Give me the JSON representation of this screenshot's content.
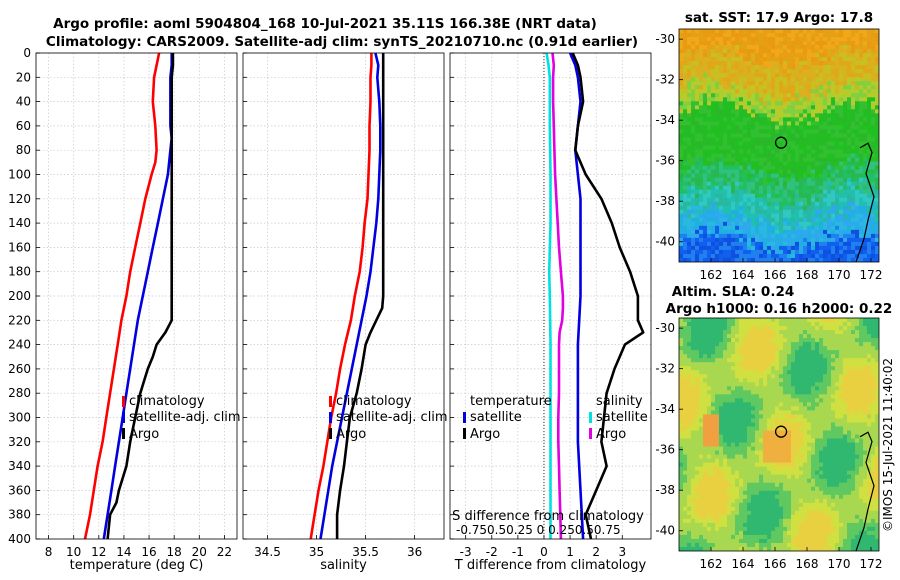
{
  "title_line1": "Argo profile: aoml 5904804_168 10-Jul-2021 35.11S 166.38E (NRT data)",
  "title_line2": "Climatology: CARS2009. Satellite-adj clim: synTS_20210710.nc (0.91d earlier)",
  "colors": {
    "red": "#ff0000",
    "blue": "#0000e0",
    "black": "#000000",
    "cyan": "#00e0e0",
    "magenta": "#e000e0"
  },
  "legend": {
    "climatology": "climatology",
    "satellite_adj": "satellite-adj. clim",
    "argo": "Argo",
    "temperature": "temperature",
    "salinity": "salinity",
    "satellite": "satellite"
  },
  "sst_title": "sat. SST: 17.9 Argo: 17.8",
  "sla_title1": "Altim. SLA: 0.24",
  "sla_title2": "Argo h1000: 0.16 h2000: 0.22",
  "copyright": "©IMOS 15-Jul-2021 11:40:02",
  "chart_data": [
    {
      "type": "line",
      "xlabel": "temperature (deg C)",
      "xlim": [
        7,
        23
      ],
      "ylim": [
        0,
        400
      ],
      "yreverse": true,
      "yticks": [
        "0",
        "20",
        "40",
        "60",
        "80",
        "100",
        "120",
        "140",
        "160",
        "180",
        "200",
        "220",
        "240",
        "260",
        "280",
        "300",
        "320",
        "340",
        "360",
        "380",
        "400"
      ],
      "xticks": [
        8,
        10,
        12,
        14,
        16,
        18,
        20,
        22
      ],
      "series": [
        {
          "name": "climatology",
          "color": "red",
          "depth": [
            0,
            10,
            20,
            40,
            60,
            80,
            90,
            100,
            120,
            140,
            160,
            180,
            200,
            220,
            240,
            260,
            280,
            300,
            320,
            340,
            360,
            380,
            400
          ],
          "values": [
            16.8,
            16.6,
            16.4,
            16.3,
            16.5,
            16.6,
            16.5,
            16.2,
            15.7,
            15.3,
            14.9,
            14.5,
            14.2,
            13.8,
            13.5,
            13.2,
            12.9,
            12.6,
            12.3,
            11.9,
            11.6,
            11.3,
            10.9
          ]
        },
        {
          "name": "satellite-adj. clim",
          "color": "blue",
          "depth": [
            0,
            10,
            20,
            40,
            60,
            70,
            80,
            100,
            120,
            140,
            160,
            180,
            200,
            220,
            240,
            260,
            280,
            300,
            320,
            340,
            360,
            380,
            400
          ],
          "values": [
            17.8,
            17.8,
            17.7,
            17.7,
            17.7,
            17.8,
            17.7,
            17.5,
            17.1,
            16.7,
            16.3,
            15.9,
            15.5,
            15.1,
            14.8,
            14.5,
            14.2,
            13.9,
            13.6,
            13.3,
            13.0,
            12.7,
            12.4
          ]
        },
        {
          "name": "Argo",
          "color": "black",
          "depth": [
            0,
            10,
            20,
            40,
            60,
            80,
            100,
            140,
            180,
            200,
            220,
            230,
            240,
            250,
            260,
            270,
            280,
            300,
            320,
            340,
            360,
            370,
            380,
            400
          ],
          "values": [
            17.9,
            17.9,
            17.8,
            17.8,
            17.8,
            17.8,
            17.8,
            17.8,
            17.8,
            17.8,
            17.8,
            17.3,
            16.6,
            16.3,
            15.9,
            15.6,
            15.3,
            14.9,
            14.5,
            14.2,
            13.6,
            13.4,
            12.9,
            12.7
          ]
        }
      ]
    },
    {
      "type": "line",
      "xlabel": "salinity",
      "xlim": [
        34.25,
        36.3
      ],
      "ylim": [
        0,
        400
      ],
      "yreverse": true,
      "xticks": [
        34.5,
        35,
        35.5,
        36
      ],
      "series": [
        {
          "name": "climatology",
          "color": "red",
          "depth": [
            0,
            10,
            20,
            40,
            60,
            80,
            100,
            120,
            140,
            160,
            180,
            200,
            220,
            240,
            260,
            280,
            300,
            320,
            340,
            360,
            380,
            400
          ],
          "values": [
            35.56,
            35.56,
            35.55,
            35.55,
            35.54,
            35.54,
            35.53,
            35.52,
            35.49,
            35.47,
            35.44,
            35.39,
            35.35,
            35.29,
            35.24,
            35.2,
            35.15,
            35.11,
            35.07,
            35.02,
            34.98,
            34.94
          ]
        },
        {
          "name": "satellite-adj. clim",
          "color": "blue",
          "depth": [
            0,
            10,
            20,
            40,
            60,
            80,
            100,
            120,
            140,
            160,
            180,
            200,
            220,
            240,
            260,
            280,
            300,
            320,
            340,
            360,
            380,
            400
          ],
          "values": [
            35.6,
            35.63,
            35.62,
            35.64,
            35.65,
            35.65,
            35.64,
            35.63,
            35.61,
            35.58,
            35.55,
            35.51,
            35.46,
            35.41,
            35.36,
            35.31,
            35.26,
            35.21,
            35.16,
            35.12,
            35.08,
            35.04
          ]
        },
        {
          "name": "Argo",
          "color": "black",
          "depth": [
            0,
            10,
            20,
            40,
            60,
            80,
            100,
            140,
            180,
            200,
            210,
            220,
            230,
            240,
            260,
            280,
            300,
            320,
            340,
            360,
            380,
            400
          ],
          "values": [
            35.68,
            35.68,
            35.68,
            35.68,
            35.68,
            35.68,
            35.68,
            35.68,
            35.68,
            35.68,
            35.67,
            35.61,
            35.55,
            35.5,
            35.46,
            35.41,
            35.34,
            35.31,
            35.28,
            35.24,
            35.21,
            35.21
          ]
        }
      ]
    },
    {
      "type": "line",
      "xlabel": "T difference from climatology",
      "s_label": "S difference from climatology",
      "xlim": [
        -3.6,
        4.1
      ],
      "ylim": [
        0,
        400
      ],
      "yreverse": true,
      "xticks": [
        -3,
        -2,
        -1,
        0,
        1,
        2,
        3
      ],
      "s_ticks_text": "-0.750.50.25  0  0.250.50.75",
      "series": [
        {
          "name": "satellite (T)",
          "color": "blue",
          "depth": [
            0,
            10,
            20,
            40,
            60,
            80,
            100,
            120,
            140,
            160,
            180,
            200,
            240,
            280,
            320,
            360,
            400
          ],
          "values": [
            1.0,
            1.2,
            1.3,
            1.4,
            1.3,
            1.2,
            1.3,
            1.4,
            1.4,
            1.4,
            1.4,
            1.4,
            1.3,
            1.3,
            1.3,
            1.4,
            1.5
          ]
        },
        {
          "name": "Argo (T)",
          "color": "black",
          "depth": [
            0,
            10,
            20,
            40,
            60,
            80,
            100,
            120,
            140,
            160,
            180,
            200,
            210,
            220,
            230,
            240,
            260,
            280,
            300,
            320,
            340,
            360,
            380,
            400
          ],
          "values": [
            1.1,
            1.3,
            1.4,
            1.5,
            1.3,
            1.2,
            1.6,
            2.2,
            2.6,
            2.9,
            3.3,
            3.6,
            3.6,
            3.6,
            3.8,
            3.1,
            2.7,
            2.4,
            2.3,
            2.2,
            2.4,
            2.0,
            1.6,
            1.8
          ]
        },
        {
          "name": "satellite (S)",
          "color": "cyan",
          "depth": [
            0,
            10,
            20,
            40,
            60,
            100,
            140,
            180,
            200,
            240,
            280,
            320,
            360,
            400
          ],
          "values": [
            0.04,
            0.07,
            0.09,
            0.09,
            0.09,
            0.1,
            0.1,
            0.08,
            0.09,
            0.1,
            0.1,
            0.1,
            0.1,
            0.1
          ]
        },
        {
          "name": "Argo (S)",
          "color": "magenta",
          "depth": [
            0,
            10,
            20,
            40,
            60,
            80,
            100,
            120,
            140,
            160,
            180,
            200,
            210,
            220,
            230,
            240,
            260,
            280,
            300,
            320,
            340,
            360,
            380,
            400
          ],
          "values": [
            0.13,
            0.15,
            0.14,
            0.14,
            0.15,
            0.16,
            0.17,
            0.19,
            0.21,
            0.23,
            0.26,
            0.29,
            0.29,
            0.28,
            0.24,
            0.23,
            0.23,
            0.23,
            0.22,
            0.22,
            0.23,
            0.24,
            0.25,
            0.26
          ]
        }
      ]
    },
    {
      "type": "heatmap",
      "title": "sat. SST: 17.9 Argo: 17.8",
      "xlim": [
        160,
        172.5
      ],
      "ylim": [
        -41,
        -29.5
      ],
      "xticks": [
        162,
        164,
        166,
        168,
        170,
        172
      ],
      "yticks": [
        -30,
        -32,
        -34,
        -36,
        -38,
        -40
      ],
      "marker": [
        166.38,
        -35.11
      ]
    },
    {
      "type": "heatmap",
      "title": "Altim. SLA: 0.24 / Argo h1000: 0.16 h2000: 0.22",
      "xlim": [
        160,
        172.5
      ],
      "ylim": [
        -41,
        -29.5
      ],
      "xticks": [
        162,
        164,
        166,
        168,
        170,
        172
      ],
      "yticks": [
        -30,
        -32,
        -34,
        -36,
        -38,
        -40
      ],
      "marker": [
        166.38,
        -35.11
      ]
    }
  ]
}
